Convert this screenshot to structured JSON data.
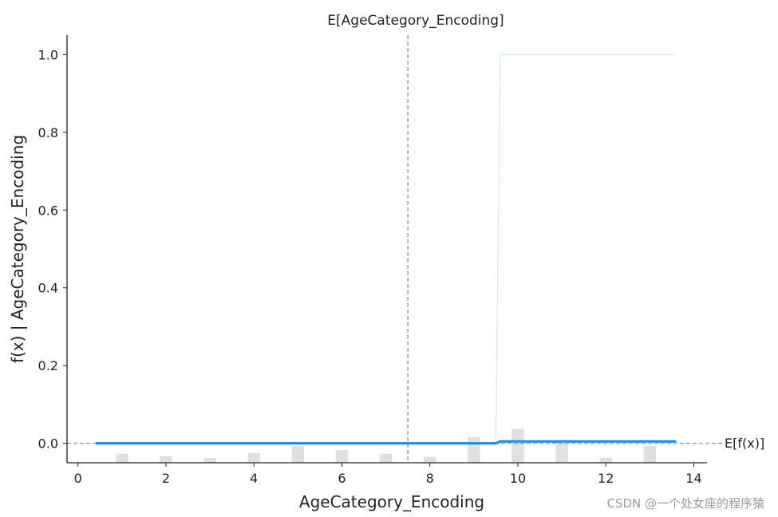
{
  "chart_data": {
    "type": "line",
    "title": "",
    "top_annotation": "E[AgeCategory_Encoding]",
    "xlabel": "AgeCategory_Encoding",
    "ylabel": "f(x) | AgeCategory_Encoding",
    "xlim": [
      -0.25,
      14.3
    ],
    "ylim": [
      -0.05,
      1.05
    ],
    "x_ticks": [
      0,
      2,
      4,
      6,
      8,
      10,
      12,
      14
    ],
    "y_ticks": [
      0.0,
      0.2,
      0.4,
      0.6,
      0.8,
      1.0
    ],
    "x_tick_labels": [
      "0",
      "2",
      "4",
      "6",
      "8",
      "10",
      "12",
      "14"
    ],
    "y_tick_labels": [
      "0.0",
      "0.2",
      "0.4",
      "0.6",
      "0.8",
      "1.0"
    ],
    "expected_x": 7.5,
    "expected_fx": 0.0,
    "expected_fx_label": "E[f(x)]",
    "series": [
      {
        "x": [
          0.4,
          9.5,
          9.6,
          13.6
        ],
        "y": [
          0.0,
          0.0,
          0.005,
          0.005
        ],
        "color": "#1e88e5"
      },
      {
        "x": [
          0.4,
          9.5,
          9.6,
          13.6
        ],
        "y": [
          0.0,
          0.0,
          1.0,
          1.0
        ],
        "color": "#d6ecfb"
      }
    ],
    "histogram": {
      "x": [
        1,
        2,
        3,
        4,
        5,
        6,
        7,
        8,
        9,
        10,
        11,
        12,
        13
      ],
      "values": [
        0.023,
        0.017,
        0.012,
        0.025,
        0.043,
        0.033,
        0.023,
        0.015,
        0.066,
        0.087,
        0.058,
        0.013,
        0.043
      ],
      "color": "#e0e0e0"
    },
    "grid": false,
    "legend": "none"
  },
  "watermark": "CSDN @一个处女座的程序猿"
}
